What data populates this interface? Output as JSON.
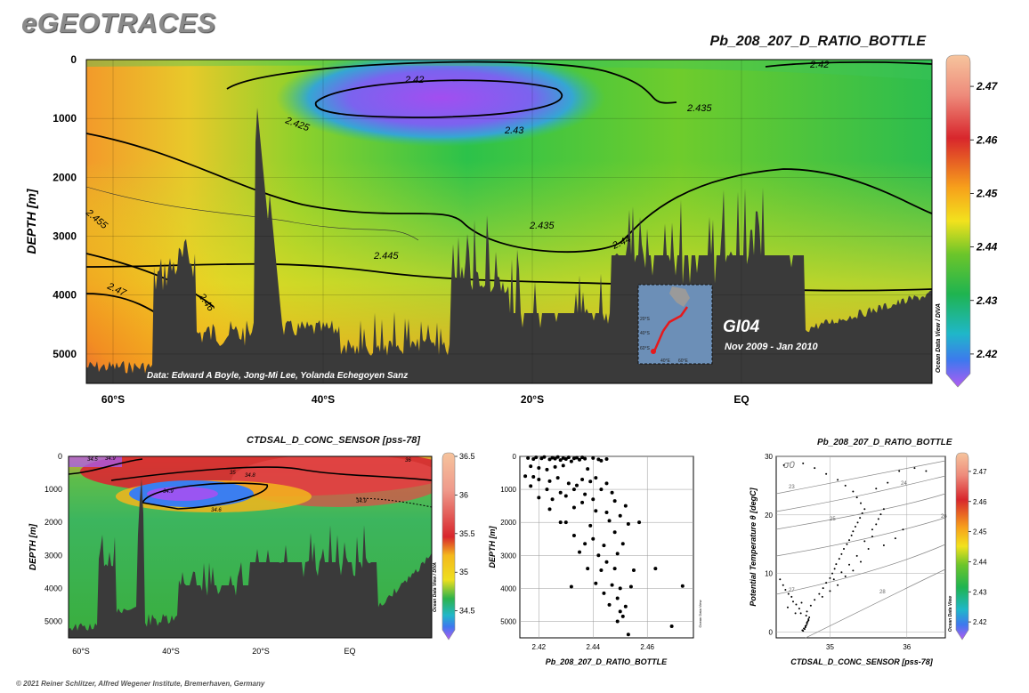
{
  "brand": "eGEOTRACES",
  "copyright": "© 2021 Reiner Schlitzer, Alfred Wegener Institute, Bremerhaven, Germany",
  "chart_data": [
    {
      "id": "main-section",
      "type": "heatmap",
      "title": "Pb_208_207_D_RATIO_BOTTLE",
      "ylabel": "DEPTH [m]",
      "xlabel": "",
      "x_ticks": [
        "60°S",
        "40°S",
        "20°S",
        "EQ"
      ],
      "y_ticks": [
        "0",
        "1000",
        "2000",
        "3000",
        "4000",
        "5000"
      ],
      "ylim": [
        0,
        5500
      ],
      "colorbar_ticks": [
        "2.47",
        "2.46",
        "2.45",
        "2.44",
        "2.43",
        "2.42"
      ],
      "colorbar_range": [
        2.415,
        2.475
      ],
      "colorbar_side_label": "Ocean Data View / DIVA",
      "contour_labels": [
        "2.42",
        "2.425",
        "2.43",
        "2.435",
        "2.435",
        "2.44",
        "2.445",
        "2.455",
        "2.46",
        "2.47",
        "2.42"
      ],
      "credit": "Data: Edward A Boyle, Jong-Mi Lee, Yolanda Echegoyen Sanz",
      "section_name": "GI04",
      "section_dates": "Nov 2009 - Jan 2010",
      "inset_ticks": [
        "20°S",
        "40°S",
        "60°S",
        "40°E",
        "60°E"
      ]
    },
    {
      "id": "salinity-section",
      "type": "heatmap",
      "title": "CTDSAL_D_CONC_SENSOR [pss-78]",
      "ylabel": "DEPTH [m]",
      "x_ticks": [
        "60°S",
        "40°S",
        "20°S",
        "EQ"
      ],
      "y_ticks": [
        "0",
        "1000",
        "2000",
        "3000",
        "4000",
        "5000"
      ],
      "ylim": [
        0,
        5500
      ],
      "colorbar_ticks": [
        "36.5",
        "36",
        "35.5",
        "35",
        "34.5"
      ],
      "colorbar_range": [
        34.3,
        36.5
      ],
      "colorbar_side_label": "Ocean Data View / DIVA",
      "contour_labels": [
        "34.5",
        "34.9",
        "35",
        "34.8",
        "34.9",
        "34.6",
        "34.9",
        "36"
      ]
    },
    {
      "id": "ratio-profile",
      "type": "scatter",
      "xlabel": "Pb_208_207_D_RATIO_BOTTLE",
      "ylabel": "DEPTH [m]",
      "x_ticks": [
        "2.42",
        "2.44",
        "2.46"
      ],
      "y_ticks": [
        "0",
        "1000",
        "2000",
        "3000",
        "4000",
        "5000"
      ],
      "xlim": [
        2.413,
        2.477
      ],
      "ylim": [
        0,
        5500
      ],
      "side_label": "Ocean Data View",
      "points": [
        [
          2.416,
          50
        ],
        [
          2.418,
          80
        ],
        [
          2.419,
          30
        ],
        [
          2.421,
          60
        ],
        [
          2.422,
          20
        ],
        [
          2.424,
          90
        ],
        [
          2.425,
          40
        ],
        [
          2.426,
          70
        ],
        [
          2.427,
          20
        ],
        [
          2.428,
          110
        ],
        [
          2.429,
          50
        ],
        [
          2.43,
          80
        ],
        [
          2.431,
          30
        ],
        [
          2.432,
          150
        ],
        [
          2.433,
          60
        ],
        [
          2.434,
          40
        ],
        [
          2.435,
          100
        ],
        [
          2.436,
          30
        ],
        [
          2.437,
          70
        ],
        [
          2.44,
          50
        ],
        [
          2.442,
          90
        ],
        [
          2.443,
          130
        ],
        [
          2.445,
          80
        ],
        [
          2.417,
          300
        ],
        [
          2.42,
          350
        ],
        [
          2.423,
          400
        ],
        [
          2.426,
          320
        ],
        [
          2.429,
          280
        ],
        [
          2.438,
          380
        ],
        [
          2.415,
          600
        ],
        [
          2.418,
          620
        ],
        [
          2.42,
          700
        ],
        [
          2.424,
          750
        ],
        [
          2.427,
          650
        ],
        [
          2.431,
          820
        ],
        [
          2.434,
          880
        ],
        [
          2.436,
          700
        ],
        [
          2.439,
          760
        ],
        [
          2.441,
          650
        ],
        [
          2.445,
          820
        ],
        [
          2.417,
          900
        ],
        [
          2.423,
          1000
        ],
        [
          2.428,
          1100
        ],
        [
          2.433,
          1000
        ],
        [
          2.437,
          1150
        ],
        [
          2.443,
          1000
        ],
        [
          2.447,
          1100
        ],
        [
          2.42,
          1250
        ],
        [
          2.425,
          1300
        ],
        [
          2.43,
          1200
        ],
        [
          2.436,
          1400
        ],
        [
          2.44,
          1300
        ],
        [
          2.448,
          1350
        ],
        [
          2.452,
          1500
        ],
        [
          2.424,
          1600
        ],
        [
          2.433,
          1550
        ],
        [
          2.441,
          1650
        ],
        [
          2.445,
          1700
        ],
        [
          2.45,
          1800
        ],
        [
          2.428,
          2000
        ],
        [
          2.43,
          2000
        ],
        [
          2.439,
          2100
        ],
        [
          2.446,
          1950
        ],
        [
          2.453,
          2050
        ],
        [
          2.457,
          2000
        ],
        [
          2.433,
          2400
        ],
        [
          2.44,
          2500
        ],
        [
          2.448,
          2300
        ],
        [
          2.437,
          2650
        ],
        [
          2.444,
          2700
        ],
        [
          2.451,
          2650
        ],
        [
          2.435,
          2900
        ],
        [
          2.442,
          3000
        ],
        [
          2.449,
          2950
        ],
        [
          2.445,
          3200
        ],
        [
          2.438,
          3400
        ],
        [
          2.443,
          3450
        ],
        [
          2.448,
          3400
        ],
        [
          2.455,
          3450
        ],
        [
          2.463,
          3400
        ],
        [
          2.432,
          3950
        ],
        [
          2.441,
          3850
        ],
        [
          2.447,
          3900
        ],
        [
          2.45,
          4000
        ],
        [
          2.454,
          3950
        ],
        [
          2.473,
          3930
        ],
        [
          2.444,
          4150
        ],
        [
          2.449,
          4300
        ],
        [
          2.446,
          4500
        ],
        [
          2.452,
          4550
        ],
        [
          2.45,
          4700
        ],
        [
          2.451,
          4850
        ],
        [
          2.449,
          5000
        ],
        [
          2.469,
          5150
        ],
        [
          2.453,
          5400
        ]
      ]
    },
    {
      "id": "ts-diagram",
      "type": "scatter",
      "title": "Pb_208_207_D_RATIO_BOTTLE",
      "xlabel": "CTDSAL_D_CONC_SENSOR [pss-78]",
      "ylabel": "Potential Temperature θ [degC]",
      "x_ticks": [
        "35",
        "36"
      ],
      "y_ticks": [
        "0",
        "10",
        "20",
        "30"
      ],
      "xlim": [
        34.3,
        36.5
      ],
      "ylim": [
        -1,
        30
      ],
      "sigma_label": "σ0",
      "isopycnal_labels": [
        "23",
        "24",
        "25",
        "26",
        "27",
        "28"
      ],
      "colorbar_ticks": [
        "2.47",
        "2.46",
        "2.45",
        "2.44",
        "2.43",
        "2.42"
      ],
      "colorbar_range": [
        2.415,
        2.475
      ],
      "colorbar_side_label": "Ocean Data View",
      "points": [
        [
          34.65,
          0.2
        ],
        [
          34.67,
          0.5
        ],
        [
          34.68,
          0.8
        ],
        [
          34.69,
          1.1
        ],
        [
          34.7,
          1.4
        ],
        [
          34.7,
          1.6
        ],
        [
          34.71,
          1.8
        ],
        [
          34.72,
          2.0
        ],
        [
          34.72,
          2.2
        ],
        [
          34.73,
          2.5
        ],
        [
          34.68,
          1.0
        ],
        [
          34.66,
          0.6
        ],
        [
          34.64,
          0.3
        ],
        [
          34.69,
          2.8
        ],
        [
          34.62,
          3.2
        ],
        [
          34.6,
          4.0
        ],
        [
          34.56,
          4.7
        ],
        [
          34.52,
          5.2
        ],
        [
          34.5,
          6.0
        ],
        [
          34.46,
          6.5
        ],
        [
          34.42,
          7.2
        ],
        [
          34.39,
          8.0
        ],
        [
          34.35,
          9.0
        ],
        [
          34.63,
          5.0
        ],
        [
          34.7,
          3.5
        ],
        [
          34.75,
          4.5
        ],
        [
          34.8,
          5.5
        ],
        [
          34.86,
          6.5
        ],
        [
          34.91,
          7.5
        ],
        [
          34.95,
          8.4
        ],
        [
          35.0,
          9.2
        ],
        [
          35.03,
          10.0
        ],
        [
          35.06,
          10.8
        ],
        [
          35.08,
          11.6
        ],
        [
          35.12,
          12.5
        ],
        [
          35.15,
          13.3
        ],
        [
          35.18,
          14.2
        ],
        [
          35.22,
          15.0
        ],
        [
          35.25,
          15.7
        ],
        [
          35.28,
          16.5
        ],
        [
          35.3,
          17.2
        ],
        [
          35.33,
          18.0
        ],
        [
          35.36,
          18.7
        ],
        [
          35.39,
          19.5
        ],
        [
          35.42,
          20.3
        ],
        [
          35.45,
          21.0
        ],
        [
          35.4,
          22.0
        ],
        [
          35.35,
          23.0
        ],
        [
          35.3,
          24.0
        ],
        [
          35.2,
          25.0
        ],
        [
          35.1,
          26.0
        ],
        [
          34.95,
          27.0
        ],
        [
          34.8,
          28.0
        ],
        [
          34.65,
          28.8
        ],
        [
          35.55,
          17.5
        ],
        [
          35.6,
          18.4
        ],
        [
          35.63,
          19.3
        ],
        [
          35.66,
          20.1
        ],
        [
          35.7,
          21.0
        ],
        [
          35.55,
          16.3
        ],
        [
          35.45,
          15.5
        ],
        [
          35.5,
          14.2
        ],
        [
          35.35,
          13.0
        ],
        [
          35.25,
          11.5
        ],
        [
          35.15,
          10.2
        ],
        [
          35.05,
          9.0
        ],
        [
          35.2,
          9.5
        ],
        [
          35.4,
          12.0
        ],
        [
          35.3,
          10.5
        ],
        [
          34.9,
          6.0
        ],
        [
          35.0,
          7.0
        ],
        [
          35.1,
          8.0
        ],
        [
          35.9,
          27.5
        ],
        [
          36.1,
          28.0
        ],
        [
          36.25,
          27.5
        ],
        [
          35.75,
          25.5
        ],
        [
          35.6,
          24.5
        ],
        [
          34.4,
          28.5
        ],
        [
          35.7,
          14.8
        ],
        [
          35.85,
          16.0
        ],
        [
          35.95,
          17.5
        ],
        [
          34.55,
          3.2
        ],
        [
          34.45,
          4.2
        ]
      ]
    }
  ]
}
